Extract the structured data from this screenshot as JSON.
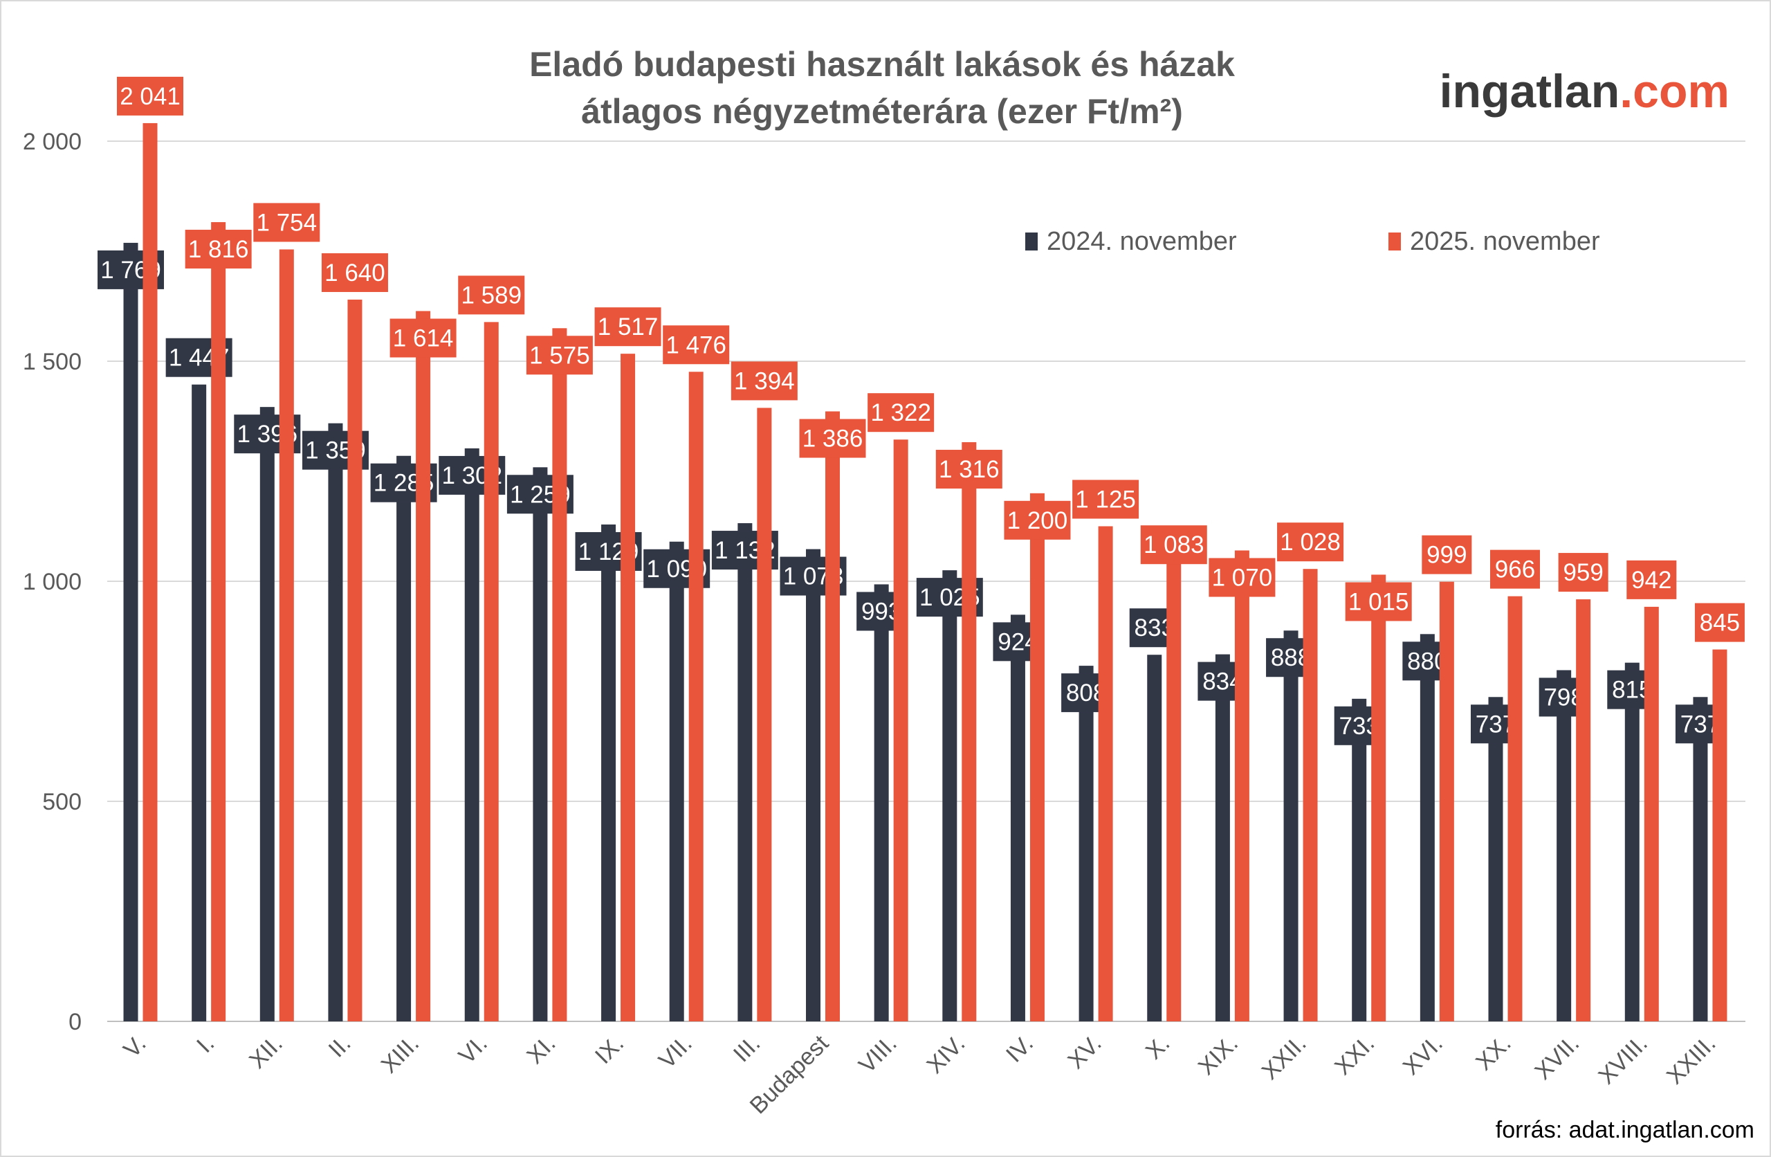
{
  "chart_data": {
    "type": "bar",
    "title_line1": "Eladó budapesti használt lakások és házak",
    "title_line2": "átlagos négyzetméterára (ezer Ft/m²)",
    "xlabel": "",
    "ylabel": "",
    "ylim": [
      0,
      2000
    ],
    "yticks": [
      0,
      500,
      1000,
      1500,
      2000
    ],
    "ytick_labels": [
      "0",
      "500",
      "1 000",
      "1 500",
      "2 000"
    ],
    "grid": true,
    "legend_position": "top-right",
    "categories": [
      "V.",
      "I.",
      "XII.",
      "II.",
      "XIII.",
      "VI.",
      "XI.",
      "IX.",
      "VII.",
      "III.",
      "Budapest",
      "VIII.",
      "XIV.",
      "IV.",
      "XV.",
      "X.",
      "XIX.",
      "XXII.",
      "XXI.",
      "XVI.",
      "XX.",
      "XVII.",
      "XVIII.",
      "XXIII."
    ],
    "series": [
      {
        "name": "2024. november",
        "color": "#323746",
        "values": [
          1769,
          1447,
          1396,
          1359,
          1285,
          1302,
          1259,
          1129,
          1090,
          1132,
          1073,
          993,
          1025,
          924,
          808,
          833,
          834,
          888,
          733,
          880,
          737,
          798,
          815,
          737
        ],
        "labels": [
          "1 769",
          "1 447",
          "1 396",
          "1 359",
          "1 285",
          "1 302",
          "1 259",
          "1 129",
          "1 090",
          "1 132",
          "1 073",
          "993",
          "1 025",
          "924",
          "808",
          "833",
          "834",
          "888",
          "733",
          "880",
          "737",
          "798",
          "815",
          "737"
        ]
      },
      {
        "name": "2025. november",
        "color": "#e8553a",
        "values": [
          2041,
          1816,
          1754,
          1640,
          1614,
          1589,
          1575,
          1517,
          1476,
          1394,
          1386,
          1322,
          1316,
          1200,
          1125,
          1083,
          1070,
          1028,
          1015,
          999,
          966,
          959,
          942,
          845
        ],
        "labels": [
          "2 041",
          "1 816",
          "1 754",
          "1 640",
          "1 614",
          "1 589",
          "1 575",
          "1 517",
          "1 476",
          "1 394",
          "1 386",
          "1 322",
          "1 316",
          "1 200",
          "1 125",
          "1 083",
          "1 070",
          "1 028",
          "1 015",
          "999",
          "966",
          "959",
          "942",
          "845"
        ]
      }
    ]
  },
  "logo": {
    "part1": "ingatlan",
    "part2": ".com",
    "color_dark": "#3a3a3a",
    "color_accent": "#e8553a"
  },
  "source": "forrás: adat.ingatlan.com"
}
